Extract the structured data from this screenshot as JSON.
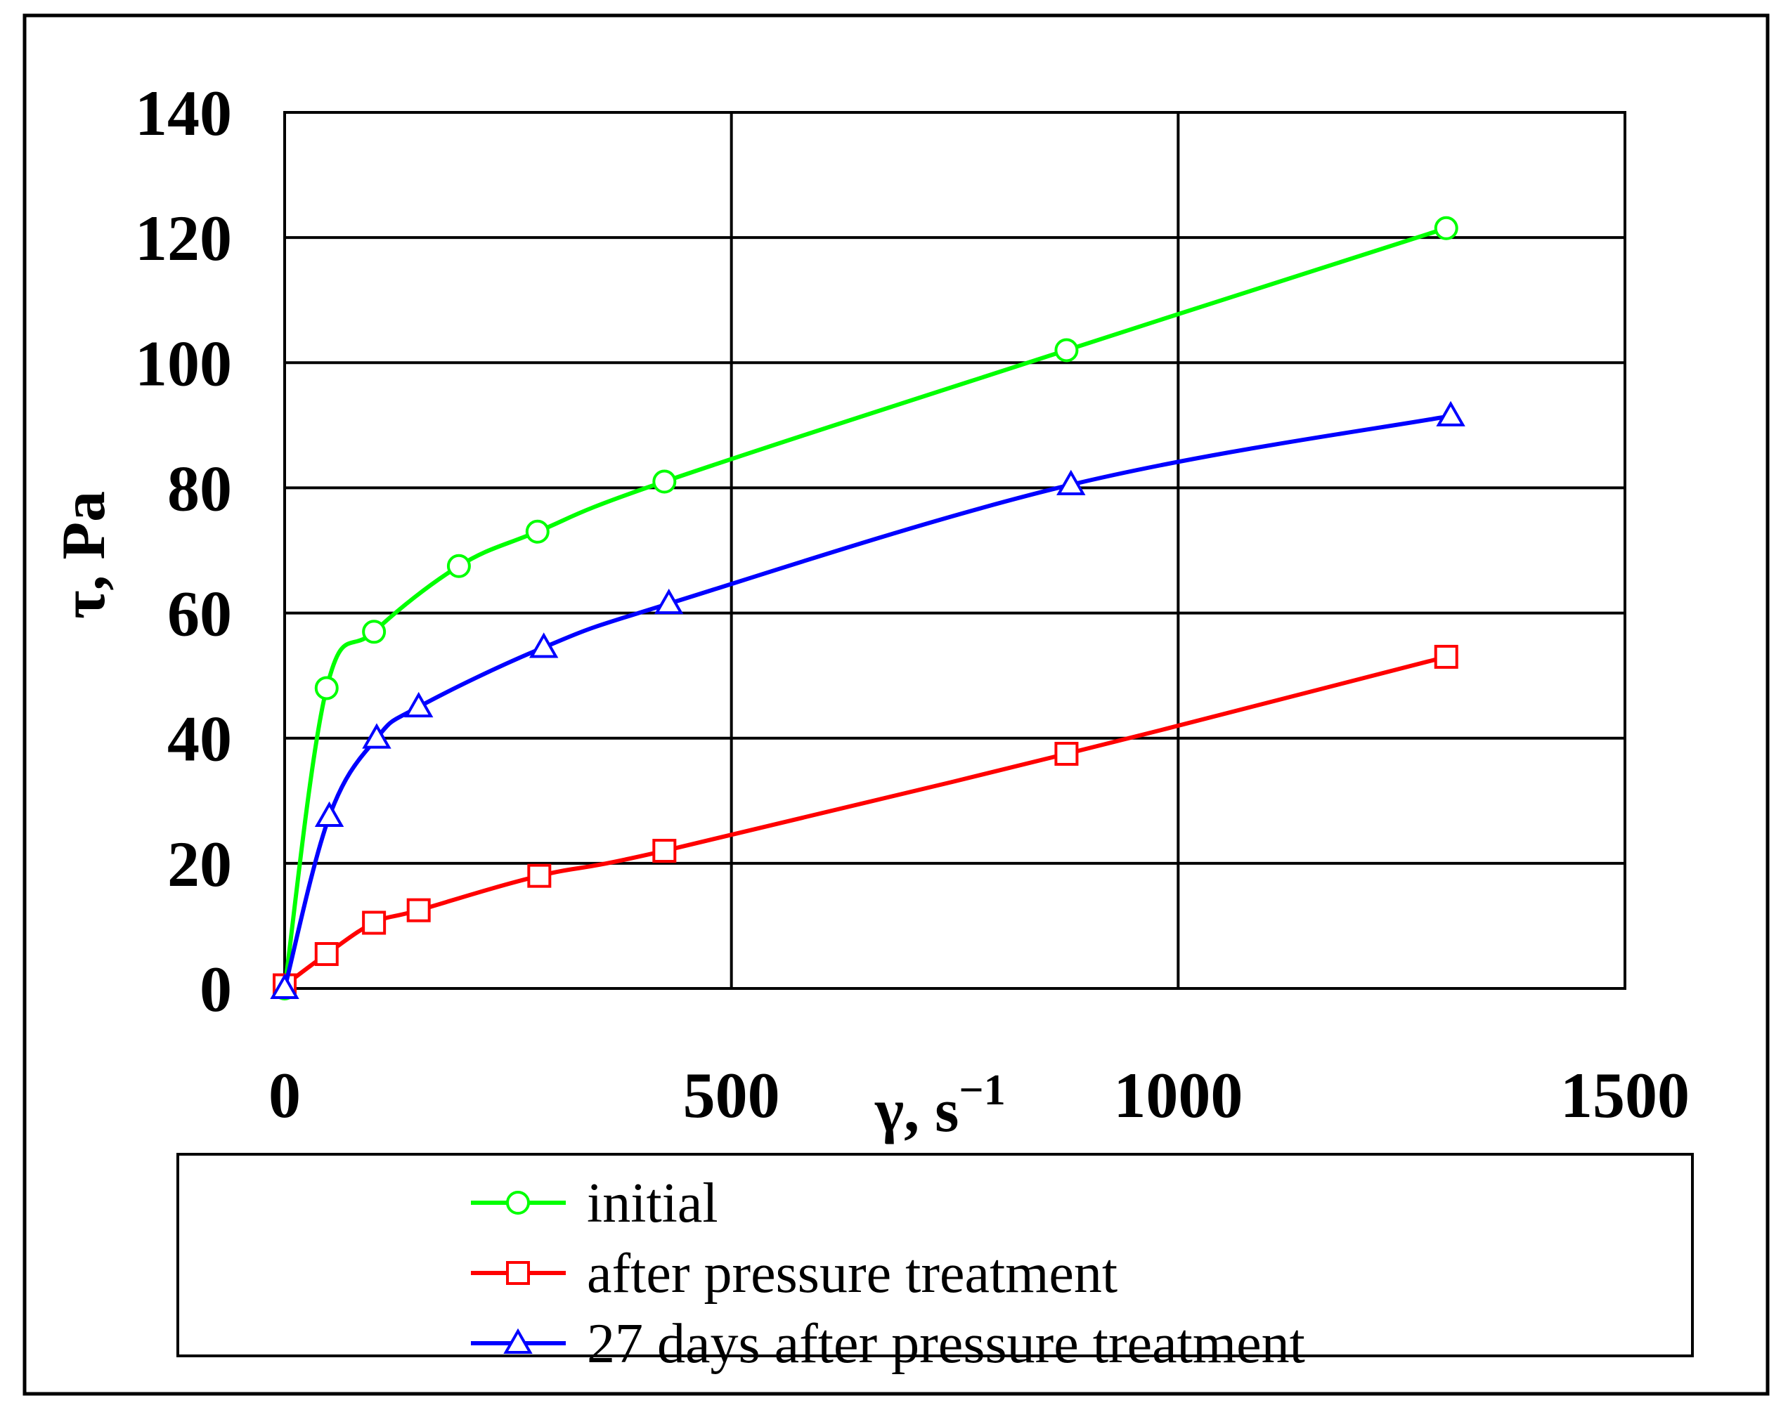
{
  "chart_data": {
    "type": "line",
    "xlabel": "γ, s",
    "xlabel_sup": "−1",
    "ylabel": "τ, Pa",
    "xlim": [
      0,
      1500
    ],
    "ylim": [
      0,
      140
    ],
    "xticks": [
      0,
      500,
      1000,
      1500
    ],
    "yticks": [
      0,
      20,
      40,
      60,
      80,
      100,
      120,
      140
    ],
    "grid": true,
    "legend_position": "bottom",
    "series": [
      {
        "name": "initial",
        "color": "#00ff00",
        "marker": "circle",
        "x": [
          0,
          47,
          100,
          195,
          283,
          425,
          875,
          1300
        ],
        "y": [
          0,
          48,
          57,
          67.5,
          73,
          81,
          102,
          121.5
        ]
      },
      {
        "name": "after pressure treatment",
        "color": "#ff0000",
        "marker": "square",
        "x": [
          0,
          47,
          100,
          150,
          285,
          425,
          875,
          1300
        ],
        "y": [
          0.5,
          5.5,
          10.5,
          12.5,
          18,
          22,
          37.5,
          53
        ]
      },
      {
        "name": "27 days after pressure treatment",
        "color": "#0000ff",
        "marker": "triangle",
        "x": [
          0,
          50,
          103,
          150,
          290,
          430,
          880,
          1305
        ],
        "y": [
          0,
          27.5,
          40,
          45,
          54.5,
          61.5,
          80.5,
          91.5
        ]
      }
    ]
  }
}
